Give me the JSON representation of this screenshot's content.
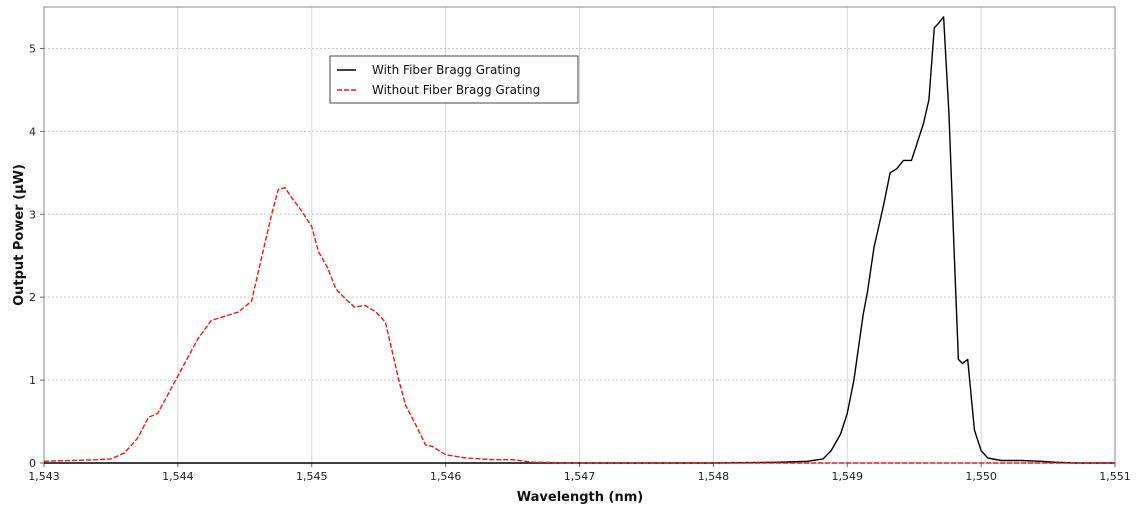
{
  "chart_data": {
    "type": "line",
    "title": "",
    "xlabel": "Wavelength (nm)",
    "ylabel": "Output Power (µW)",
    "xlim": [
      1543,
      1551
    ],
    "ylim": [
      0,
      5.5
    ],
    "x_ticks": [
      1543,
      1544,
      1545,
      1546,
      1547,
      1548,
      1549,
      1550,
      1551
    ],
    "x_tick_labels": [
      "1,543",
      "1,544",
      "1,545",
      "1,546",
      "1,547",
      "1,548",
      "1,549",
      "1,550",
      "1,551"
    ],
    "y_ticks": [
      0,
      1,
      2,
      3,
      4,
      5
    ],
    "y_tick_labels": [
      "0",
      "1",
      "2",
      "3",
      "4",
      "5"
    ],
    "grid": true,
    "legend_position": "top-left",
    "series": [
      {
        "name": "With Fiber Bragg Grating",
        "color": "#000000",
        "dash": "solid",
        "points": [
          [
            1543.0,
            0.0
          ],
          [
            1548.0,
            0.0
          ],
          [
            1548.5,
            0.01
          ],
          [
            1548.7,
            0.02
          ],
          [
            1548.82,
            0.05
          ],
          [
            1548.88,
            0.15
          ],
          [
            1548.95,
            0.35
          ],
          [
            1549.0,
            0.6
          ],
          [
            1549.05,
            1.0
          ],
          [
            1549.08,
            1.35
          ],
          [
            1549.12,
            1.8
          ],
          [
            1549.15,
            2.05
          ],
          [
            1549.2,
            2.6
          ],
          [
            1549.27,
            3.1
          ],
          [
            1549.32,
            3.5
          ],
          [
            1549.37,
            3.55
          ],
          [
            1549.42,
            3.65
          ],
          [
            1549.48,
            3.65
          ],
          [
            1549.52,
            3.85
          ],
          [
            1549.57,
            4.1
          ],
          [
            1549.61,
            4.38
          ],
          [
            1549.65,
            5.25
          ],
          [
            1549.68,
            5.3
          ],
          [
            1549.72,
            5.38
          ],
          [
            1549.76,
            4.2
          ],
          [
            1549.8,
            2.5
          ],
          [
            1549.83,
            1.25
          ],
          [
            1549.86,
            1.2
          ],
          [
            1549.9,
            1.25
          ],
          [
            1549.95,
            0.4
          ],
          [
            1550.0,
            0.15
          ],
          [
            1550.05,
            0.06
          ],
          [
            1550.15,
            0.03
          ],
          [
            1550.3,
            0.03
          ],
          [
            1550.45,
            0.02
          ],
          [
            1550.55,
            0.01
          ],
          [
            1550.7,
            0.0
          ],
          [
            1551.0,
            0.0
          ]
        ]
      },
      {
        "name": "Without Fiber Bragg Grating",
        "color": "#e8191c",
        "dash": "dashed",
        "points": [
          [
            1543.0,
            0.02
          ],
          [
            1543.2,
            0.03
          ],
          [
            1543.4,
            0.04
          ],
          [
            1543.5,
            0.05
          ],
          [
            1543.6,
            0.12
          ],
          [
            1543.7,
            0.3
          ],
          [
            1543.78,
            0.55
          ],
          [
            1543.85,
            0.6
          ],
          [
            1543.95,
            0.9
          ],
          [
            1544.05,
            1.2
          ],
          [
            1544.15,
            1.5
          ],
          [
            1544.25,
            1.72
          ],
          [
            1544.35,
            1.77
          ],
          [
            1544.45,
            1.82
          ],
          [
            1544.55,
            1.95
          ],
          [
            1544.6,
            2.3
          ],
          [
            1544.65,
            2.65
          ],
          [
            1544.7,
            3.0
          ],
          [
            1544.75,
            3.3
          ],
          [
            1544.8,
            3.32
          ],
          [
            1544.85,
            3.2
          ],
          [
            1544.92,
            3.05
          ],
          [
            1545.0,
            2.85
          ],
          [
            1545.05,
            2.55
          ],
          [
            1545.12,
            2.35
          ],
          [
            1545.18,
            2.1
          ],
          [
            1545.25,
            1.98
          ],
          [
            1545.32,
            1.88
          ],
          [
            1545.4,
            1.9
          ],
          [
            1545.48,
            1.82
          ],
          [
            1545.55,
            1.7
          ],
          [
            1545.6,
            1.35
          ],
          [
            1545.65,
            1.0
          ],
          [
            1545.7,
            0.7
          ],
          [
            1545.78,
            0.45
          ],
          [
            1545.85,
            0.22
          ],
          [
            1545.9,
            0.2
          ],
          [
            1546.0,
            0.1
          ],
          [
            1546.15,
            0.06
          ],
          [
            1546.35,
            0.04
          ],
          [
            1546.5,
            0.04
          ],
          [
            1546.65,
            0.01
          ],
          [
            1547.0,
            0.0
          ],
          [
            1551.0,
            0.0
          ]
        ]
      }
    ]
  }
}
